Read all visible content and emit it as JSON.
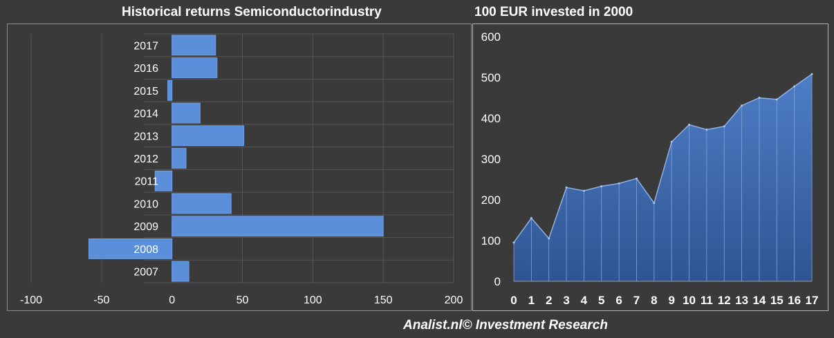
{
  "colors": {
    "background": "#3a3a3a",
    "bar_fill": "#5b8fd9",
    "area_top": "#4e7ec7",
    "area_bottom": "#2f5491",
    "gridline": "#555555",
    "text": "#ffffff"
  },
  "footer": "Analist.nl© Investment Research",
  "chart_data": [
    {
      "type": "bar",
      "orientation": "horizontal",
      "title": "Historical returns Semiconductorindustry",
      "categories": [
        "2007",
        "2008",
        "2009",
        "2010",
        "2011",
        "2012",
        "2013",
        "2014",
        "2015",
        "2016",
        "2017"
      ],
      "values": [
        12,
        -59,
        150,
        42,
        -12,
        10,
        51,
        20,
        -3,
        32,
        31
      ],
      "xlim": [
        -100,
        200
      ],
      "xticks": [
        "-100",
        "-50",
        "0",
        "50",
        "100",
        "150",
        "200"
      ],
      "xtick_values": [
        -100,
        -50,
        0,
        50,
        100,
        150,
        200
      ],
      "grid": true,
      "legend": "none"
    },
    {
      "type": "area",
      "title": "100 EUR invested in 2000",
      "x": [
        "0",
        "1",
        "2",
        "3",
        "4",
        "5",
        "6",
        "7",
        "8",
        "9",
        "10",
        "11",
        "12",
        "13",
        "14",
        "15",
        "16",
        "17"
      ],
      "values": [
        95,
        155,
        105,
        230,
        222,
        233,
        240,
        252,
        192,
        342,
        384,
        372,
        380,
        431,
        450,
        446,
        478,
        508
      ],
      "ylim": [
        0,
        600
      ],
      "yticks": [
        "0",
        "100",
        "200",
        "300",
        "400",
        "500",
        "600"
      ],
      "ytick_values": [
        0,
        100,
        200,
        300,
        400,
        500,
        600
      ],
      "grid": false,
      "legend": "none"
    }
  ]
}
